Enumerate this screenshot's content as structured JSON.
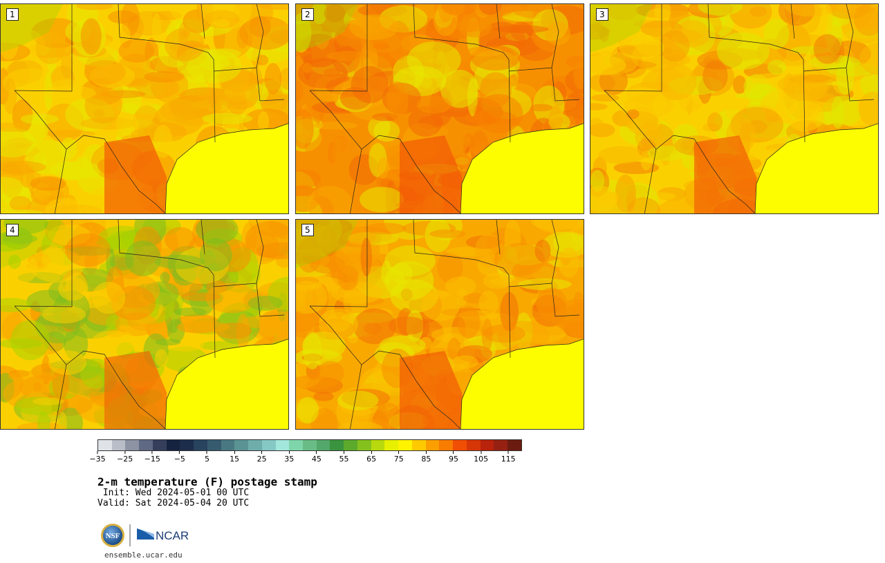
{
  "panels": [
    {
      "label": "1",
      "palette": [
        "#fbd000",
        "#f9a800",
        "#f79000",
        "#e8e800",
        "#f7b000"
      ],
      "hot": "#f25c05"
    },
    {
      "label": "2",
      "palette": [
        "#f79000",
        "#f78000",
        "#e8e800",
        "#f9a800",
        "#f26a05"
      ],
      "hot": "#f25a05"
    },
    {
      "label": "3",
      "palette": [
        "#fbd000",
        "#f9b800",
        "#e0e800",
        "#f7a000",
        "#f27c05"
      ],
      "hot": "#f26005"
    },
    {
      "label": "4",
      "palette": [
        "#fbd000",
        "#a8d400",
        "#7dbb1f",
        "#f9a800",
        "#f79000"
      ],
      "hot": "#f26a05"
    },
    {
      "label": "5",
      "palette": [
        "#f9a800",
        "#fbc000",
        "#f79000",
        "#e8e800",
        "#f27005"
      ],
      "hot": "#f25a05"
    }
  ],
  "colorbar": {
    "colors": [
      "#dfe3e8",
      "#b9bdc7",
      "#8d93a2",
      "#5f6983",
      "#353f5b",
      "#162340",
      "#1c2d4b",
      "#28435e",
      "#365b6e",
      "#4a7882",
      "#5b9394",
      "#6fadab",
      "#86c8c4",
      "#a3e6dc",
      "#7fd5aa",
      "#69bc85",
      "#54a76a",
      "#3a943f",
      "#5caa2c",
      "#85c11d",
      "#b7d90d",
      "#e6f000",
      "#fff300",
      "#fdca00",
      "#fb9e00",
      "#f87c00",
      "#f04e05",
      "#d63607",
      "#b9230b",
      "#962113",
      "#6b1b10"
    ],
    "ticks": [
      "−35",
      "−25",
      "−15",
      "−5",
      "5",
      "15",
      "25",
      "35",
      "45",
      "55",
      "65",
      "75",
      "85",
      "95",
      "105",
      "115"
    ],
    "min": -40,
    "max": 120
  },
  "title": "2-m temperature (F) postage stamp",
  "init": " Init: Wed 2024-05-01 00 UTC",
  "valid": "Valid: Sat 2024-05-04 20 UTC",
  "logos": {
    "nsf": "NSF",
    "ncar": "NCAR"
  },
  "website": "ensemble.ucar.edu",
  "colors": {
    "gulf": "#fdfd00",
    "border": "#222222"
  }
}
